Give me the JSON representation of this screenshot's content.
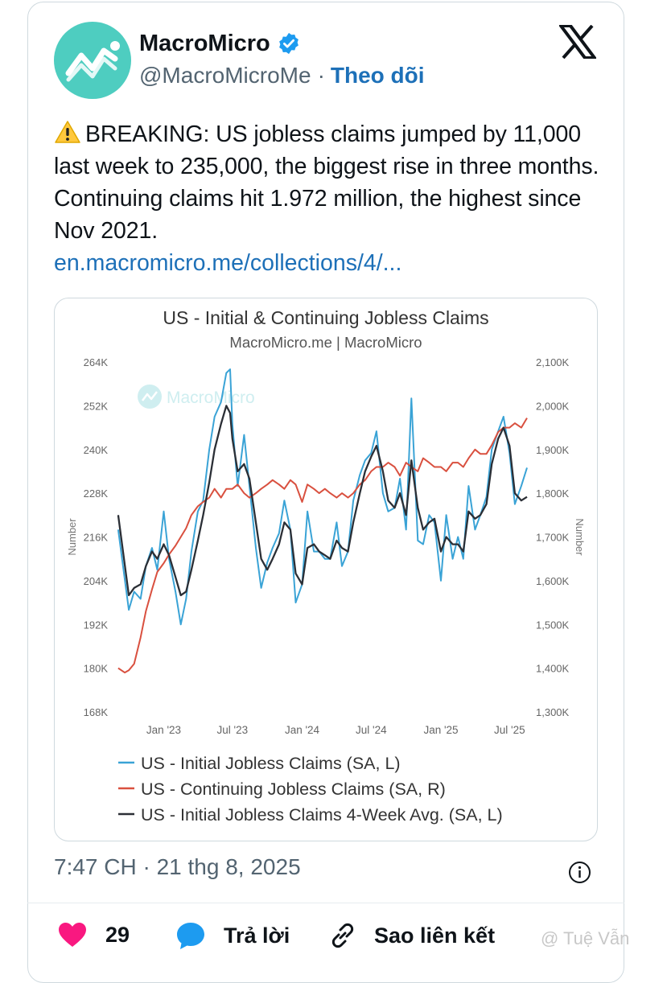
{
  "author": {
    "name": "MacroMicro",
    "handle": "@MacroMicroMe",
    "follow_label": "Theo dõi"
  },
  "tweet": {
    "text": "BREAKING: US jobless claims jumped by 11,000 last week to 235,000, the biggest rise in three months. Continuing claims hit 1.972 million, the highest since Nov 2021.",
    "link": "en.macromicro.me/collections/4/...",
    "timestamp": "7:47 CH · 21 thg 8, 2025"
  },
  "actions": {
    "likes": "29",
    "reply_label": "Trả lời",
    "copy_link_label": "Sao liên kết"
  },
  "watermark": "@ Tuệ Vẫn",
  "colors": {
    "accent": "#1d70b8",
    "like": "#f91880",
    "reply": "#1d9bf0",
    "series_initial": "#3aa3d6",
    "series_continuing": "#d9503f",
    "series_avg": "#2b2f36"
  },
  "chart_data": {
    "type": "line",
    "title": "US - Initial & Continuing Jobless Claims",
    "subtitle": "MacroMicro.me | MacroMicro",
    "watermark": "MacroMicro",
    "ylabel_left": "Number",
    "ylabel_right": "Number",
    "ylim_left": [
      168000,
      264000
    ],
    "ylim_right": [
      1300000,
      2100000
    ],
    "left_ticks": [
      "264K",
      "252K",
      "240K",
      "228K",
      "216K",
      "204K",
      "192K",
      "180K",
      "168K"
    ],
    "right_ticks": [
      "2,100K",
      "2,000K",
      "1,900K",
      "1,800K",
      "1,700K",
      "1,600K",
      "1,500K",
      "1,400K",
      "1,300K"
    ],
    "x_ticks": [
      "Jan '23",
      "Jul '23",
      "Jan '24",
      "Jul '24",
      "Jan '25",
      "Jul '25"
    ],
    "x_range": [
      "2022-09-01",
      "2025-08-16"
    ],
    "grid": false,
    "legend_position": "bottom",
    "series": [
      {
        "name": "US - Initial Jobless Claims (SA, L)",
        "axis": "left",
        "x": [
          "2022-09-03",
          "2022-10-01",
          "2022-10-15",
          "2022-11-01",
          "2022-11-15",
          "2022-12-01",
          "2022-12-15",
          "2023-01-01",
          "2023-01-15",
          "2023-02-01",
          "2023-02-15",
          "2023-03-01",
          "2023-03-15",
          "2023-04-01",
          "2023-04-15",
          "2023-05-01",
          "2023-05-15",
          "2023-06-01",
          "2023-06-15",
          "2023-06-25",
          "2023-07-01",
          "2023-07-15",
          "2023-08-01",
          "2023-08-15",
          "2023-09-01",
          "2023-09-15",
          "2023-10-01",
          "2023-10-15",
          "2023-11-01",
          "2023-11-15",
          "2023-12-01",
          "2023-12-15",
          "2024-01-01",
          "2024-01-15",
          "2024-02-01",
          "2024-02-15",
          "2024-03-01",
          "2024-03-15",
          "2024-04-01",
          "2024-04-15",
          "2024-05-01",
          "2024-05-15",
          "2024-06-01",
          "2024-06-15",
          "2024-07-01",
          "2024-07-15",
          "2024-08-01",
          "2024-08-15",
          "2024-09-01",
          "2024-09-15",
          "2024-10-01",
          "2024-10-15",
          "2024-11-01",
          "2024-11-15",
          "2024-12-01",
          "2024-12-15",
          "2025-01-01",
          "2025-01-15",
          "2025-02-01",
          "2025-02-15",
          "2025-03-01",
          "2025-03-15",
          "2025-04-01",
          "2025-04-15",
          "2025-05-01",
          "2025-05-15",
          "2025-06-01",
          "2025-06-15",
          "2025-07-01",
          "2025-07-15",
          "2025-08-01",
          "2025-08-16"
        ],
        "values": [
          218000,
          196000,
          201000,
          199000,
          208000,
          213000,
          207000,
          223000,
          210000,
          201000,
          192000,
          199000,
          212000,
          223000,
          226000,
          240000,
          249000,
          253000,
          261000,
          262000,
          247000,
          230000,
          244000,
          230000,
          213000,
          202000,
          209000,
          213000,
          217000,
          226000,
          218000,
          198000,
          203000,
          223000,
          212000,
          212000,
          210000,
          210000,
          220000,
          208000,
          212000,
          226000,
          233000,
          237000,
          239000,
          245000,
          228000,
          223000,
          224000,
          232000,
          218000,
          254000,
          215000,
          214000,
          222000,
          220000,
          204000,
          222000,
          210000,
          216000,
          210000,
          230000,
          218000,
          222000,
          227000,
          240000,
          245000,
          249000,
          239000,
          225000,
          230000,
          235000
        ]
      },
      {
        "name": "US - Continuing Jobless Claims (SA, R)",
        "axis": "right",
        "x": [
          "2022-09-03",
          "2022-09-20",
          "2022-10-01",
          "2022-10-15",
          "2022-11-01",
          "2022-11-15",
          "2022-12-01",
          "2022-12-15",
          "2023-01-01",
          "2023-01-15",
          "2023-02-01",
          "2023-02-15",
          "2023-03-01",
          "2023-03-15",
          "2023-04-01",
          "2023-04-15",
          "2023-05-01",
          "2023-05-15",
          "2023-06-01",
          "2023-06-15",
          "2023-07-01",
          "2023-07-15",
          "2023-08-01",
          "2023-08-15",
          "2023-09-01",
          "2023-09-15",
          "2023-10-01",
          "2023-10-15",
          "2023-11-01",
          "2023-11-15",
          "2023-12-01",
          "2023-12-15",
          "2024-01-01",
          "2024-01-15",
          "2024-02-01",
          "2024-02-15",
          "2024-03-01",
          "2024-03-15",
          "2024-04-01",
          "2024-04-15",
          "2024-05-01",
          "2024-05-15",
          "2024-06-01",
          "2024-06-15",
          "2024-07-01",
          "2024-07-15",
          "2024-08-01",
          "2024-08-15",
          "2024-09-01",
          "2024-09-15",
          "2024-10-01",
          "2024-10-15",
          "2024-11-01",
          "2024-11-15",
          "2024-12-01",
          "2024-12-15",
          "2025-01-01",
          "2025-01-15",
          "2025-02-01",
          "2025-02-15",
          "2025-03-01",
          "2025-03-15",
          "2025-04-01",
          "2025-04-15",
          "2025-05-01",
          "2025-05-15",
          "2025-06-01",
          "2025-06-15",
          "2025-07-01",
          "2025-07-15",
          "2025-08-01",
          "2025-08-16"
        ],
        "values": [
          1400000,
          1390000,
          1395000,
          1410000,
          1470000,
          1530000,
          1580000,
          1620000,
          1640000,
          1660000,
          1680000,
          1700000,
          1720000,
          1750000,
          1770000,
          1780000,
          1790000,
          1810000,
          1790000,
          1810000,
          1810000,
          1820000,
          1800000,
          1790000,
          1800000,
          1810000,
          1820000,
          1830000,
          1820000,
          1810000,
          1830000,
          1820000,
          1780000,
          1820000,
          1810000,
          1800000,
          1810000,
          1800000,
          1790000,
          1800000,
          1790000,
          1800000,
          1820000,
          1830000,
          1850000,
          1860000,
          1860000,
          1870000,
          1860000,
          1840000,
          1870000,
          1860000,
          1850000,
          1880000,
          1870000,
          1860000,
          1860000,
          1850000,
          1870000,
          1870000,
          1860000,
          1880000,
          1900000,
          1890000,
          1890000,
          1910000,
          1940000,
          1950000,
          1950000,
          1960000,
          1950000,
          1972000
        ]
      },
      {
        "name": "US - Initial Jobless Claims 4-Week Avg. (SA, L)",
        "axis": "left",
        "x": [
          "2022-09-03",
          "2022-10-01",
          "2022-10-15",
          "2022-11-01",
          "2022-11-15",
          "2022-12-01",
          "2022-12-15",
          "2023-01-01",
          "2023-01-15",
          "2023-02-01",
          "2023-02-15",
          "2023-03-01",
          "2023-03-15",
          "2023-04-01",
          "2023-04-15",
          "2023-05-01",
          "2023-05-15",
          "2023-06-01",
          "2023-06-15",
          "2023-06-25",
          "2023-07-01",
          "2023-07-15",
          "2023-08-01",
          "2023-08-15",
          "2023-09-01",
          "2023-09-15",
          "2023-10-01",
          "2023-10-15",
          "2023-11-01",
          "2023-11-15",
          "2023-12-01",
          "2023-12-15",
          "2024-01-01",
          "2024-01-15",
          "2024-02-01",
          "2024-02-15",
          "2024-03-01",
          "2024-03-15",
          "2024-04-01",
          "2024-04-15",
          "2024-05-01",
          "2024-05-15",
          "2024-06-01",
          "2024-06-15",
          "2024-07-01",
          "2024-07-15",
          "2024-08-01",
          "2024-08-15",
          "2024-09-01",
          "2024-09-15",
          "2024-10-01",
          "2024-10-15",
          "2024-11-01",
          "2024-11-15",
          "2024-12-01",
          "2024-12-15",
          "2025-01-01",
          "2025-01-15",
          "2025-02-01",
          "2025-02-15",
          "2025-03-01",
          "2025-03-15",
          "2025-04-01",
          "2025-04-15",
          "2025-05-01",
          "2025-05-15",
          "2025-06-01",
          "2025-06-15",
          "2025-07-01",
          "2025-07-15",
          "2025-08-01",
          "2025-08-16"
        ],
        "values": [
          222000,
          200000,
          202000,
          203000,
          208000,
          212000,
          210000,
          214000,
          211000,
          205000,
          200000,
          201000,
          207000,
          215000,
          222000,
          231000,
          240000,
          247000,
          252000,
          250000,
          243000,
          234000,
          236000,
          232000,
          220000,
          210000,
          207000,
          210000,
          214000,
          220000,
          218000,
          206000,
          203000,
          213000,
          214000,
          212000,
          211000,
          210000,
          215000,
          213000,
          212000,
          220000,
          228000,
          234000,
          238000,
          241000,
          234000,
          226000,
          224000,
          228000,
          222000,
          237000,
          224000,
          218000,
          220000,
          221000,
          212000,
          216000,
          214000,
          214000,
          212000,
          223000,
          221000,
          222000,
          225000,
          236000,
          243000,
          246000,
          241000,
          228000,
          226000,
          227000
        ]
      }
    ]
  }
}
